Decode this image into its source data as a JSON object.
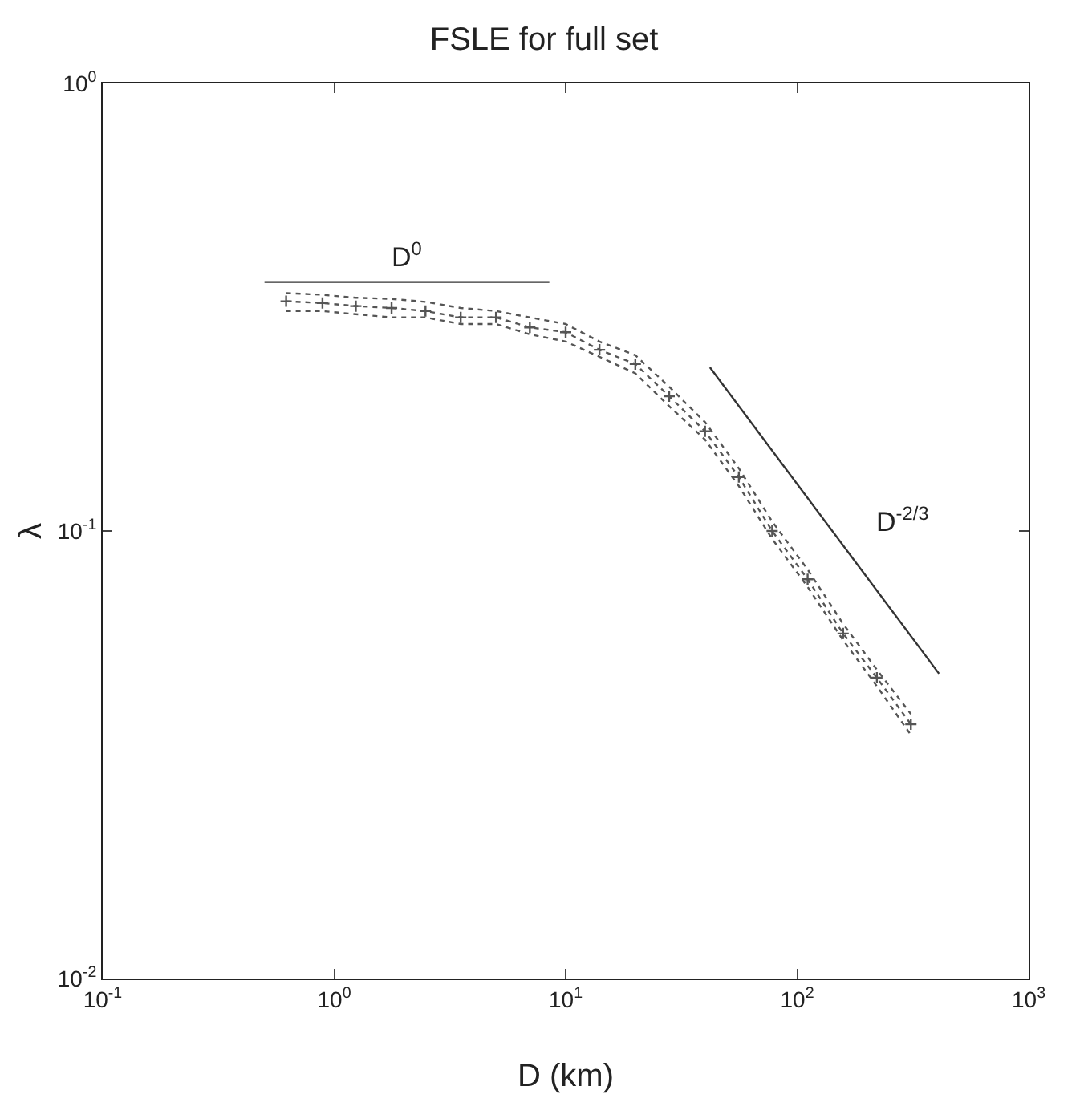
{
  "chart_data": {
    "type": "line",
    "title": "FSLE for full set",
    "xlabel": "D (km)",
    "ylabel": "λ",
    "log": "xy",
    "grid": false,
    "legend": false,
    "xlim": [
      0.1,
      1000
    ],
    "xticks": [
      {
        "value": 0.1,
        "label": "10$^{-1}$"
      },
      {
        "value": 1,
        "label": "10$^{0}$"
      },
      {
        "value": 10,
        "label": "10$^{1}$"
      },
      {
        "value": 100,
        "label": "10$^{2}$"
      },
      {
        "value": 1000,
        "label": "10$^{3}$"
      }
    ],
    "ylim": [
      0.01,
      1
    ],
    "yticks": [
      {
        "value": 0.01,
        "label": "10$^{-2}$"
      },
      {
        "value": 0.1,
        "label": "10$^{-1}$"
      },
      {
        "value": 1,
        "label": "10$^{0}$"
      }
    ],
    "series": [
      {
        "color": "#555555",
        "marker": "cross",
        "line_style": "dotted",
        "x": [
          0.62,
          0.89,
          1.24,
          1.77,
          2.48,
          3.52,
          5.0,
          7.0,
          10,
          14,
          20,
          28,
          40,
          56,
          78,
          111,
          158,
          221,
          310
        ],
        "values": [
          0.326,
          0.323,
          0.318,
          0.315,
          0.31,
          0.3,
          0.3,
          0.285,
          0.278,
          0.254,
          0.236,
          0.2,
          0.167,
          0.132,
          0.1,
          0.078,
          0.059,
          0.047,
          0.037
        ]
      },
      {
        "color": "#555555",
        "marker": "none",
        "line_style": "dotted",
        "x": [
          0.62,
          0.89,
          1.24,
          1.77,
          2.48,
          3.52,
          5.0,
          7.0,
          10,
          14,
          20,
          28,
          40,
          56,
          78,
          111,
          158,
          221,
          310
        ],
        "values": [
          0.31,
          0.31,
          0.305,
          0.3,
          0.3,
          0.29,
          0.29,
          0.275,
          0.265,
          0.245,
          0.225,
          0.19,
          0.16,
          0.126,
          0.096,
          0.075,
          0.057,
          0.045,
          0.035
        ]
      },
      {
        "color": "#555555",
        "marker": "none",
        "line_style": "dotted",
        "x": [
          0.62,
          0.89,
          1.24,
          1.77,
          2.48,
          3.52,
          5.0,
          7.0,
          10,
          14,
          20,
          28,
          40,
          56,
          78,
          111,
          158,
          221,
          310
        ],
        "values": [
          0.34,
          0.337,
          0.332,
          0.33,
          0.325,
          0.315,
          0.31,
          0.3,
          0.29,
          0.265,
          0.247,
          0.21,
          0.175,
          0.138,
          0.105,
          0.082,
          0.062,
          0.049,
          0.039
        ]
      },
      {
        "name": "D$^{0}$",
        "color": "#333333",
        "marker": "none",
        "line_style": "solid",
        "x": [
          0.5,
          8.5
        ],
        "values": [
          0.36,
          0.36
        ]
      },
      {
        "name": "D$^{-2/3}$",
        "color": "#333333",
        "marker": "none",
        "line_style": "solid",
        "x": [
          42,
          410
        ],
        "values": [
          0.232,
          0.048
        ]
      }
    ]
  }
}
